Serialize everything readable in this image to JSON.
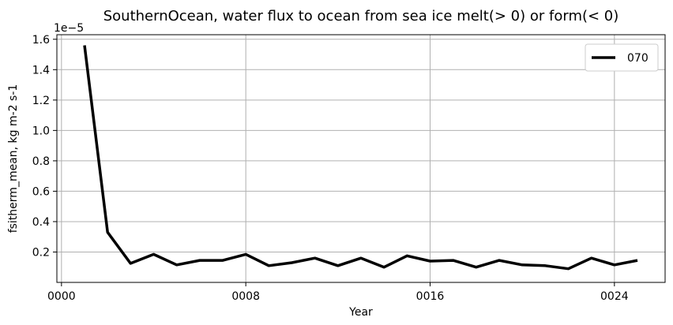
{
  "chart_data": {
    "type": "line",
    "title": "SouthernOcean, water flux to ocean from sea ice melt(> 0) or form(< 0)",
    "xlabel": "Year",
    "ylabel": "fsitherm_mean, kg m-2 s-1",
    "y_offset_label": "1e−5",
    "xlim": [
      -0.2,
      26.2
    ],
    "ylim": [
      0.0,
      1.63
    ],
    "x_ticks": [
      0,
      8,
      16,
      24
    ],
    "x_tick_labels": [
      "0000",
      "0008",
      "0016",
      "0024"
    ],
    "y_ticks": [
      0.2,
      0.4,
      0.6,
      0.8,
      1.0,
      1.2,
      1.4,
      1.6
    ],
    "y_tick_labels": [
      "0.2",
      "0.4",
      "0.6",
      "0.8",
      "1.0",
      "1.2",
      "1.4",
      "1.6"
    ],
    "grid": true,
    "legend_position": "top-right",
    "series": [
      {
        "name": "070",
        "color": "#000000",
        "x": [
          1,
          2,
          3,
          4,
          5,
          6,
          7,
          8,
          9,
          10,
          11,
          12,
          13,
          14,
          15,
          16,
          17,
          18,
          19,
          20,
          21,
          22,
          23,
          24,
          25
        ],
        "values": [
          1.56,
          0.33,
          0.125,
          0.185,
          0.115,
          0.145,
          0.145,
          0.185,
          0.11,
          0.13,
          0.16,
          0.11,
          0.16,
          0.1,
          0.175,
          0.14,
          0.145,
          0.1,
          0.145,
          0.115,
          0.11,
          0.09,
          0.16,
          0.115,
          0.145
        ]
      }
    ]
  }
}
